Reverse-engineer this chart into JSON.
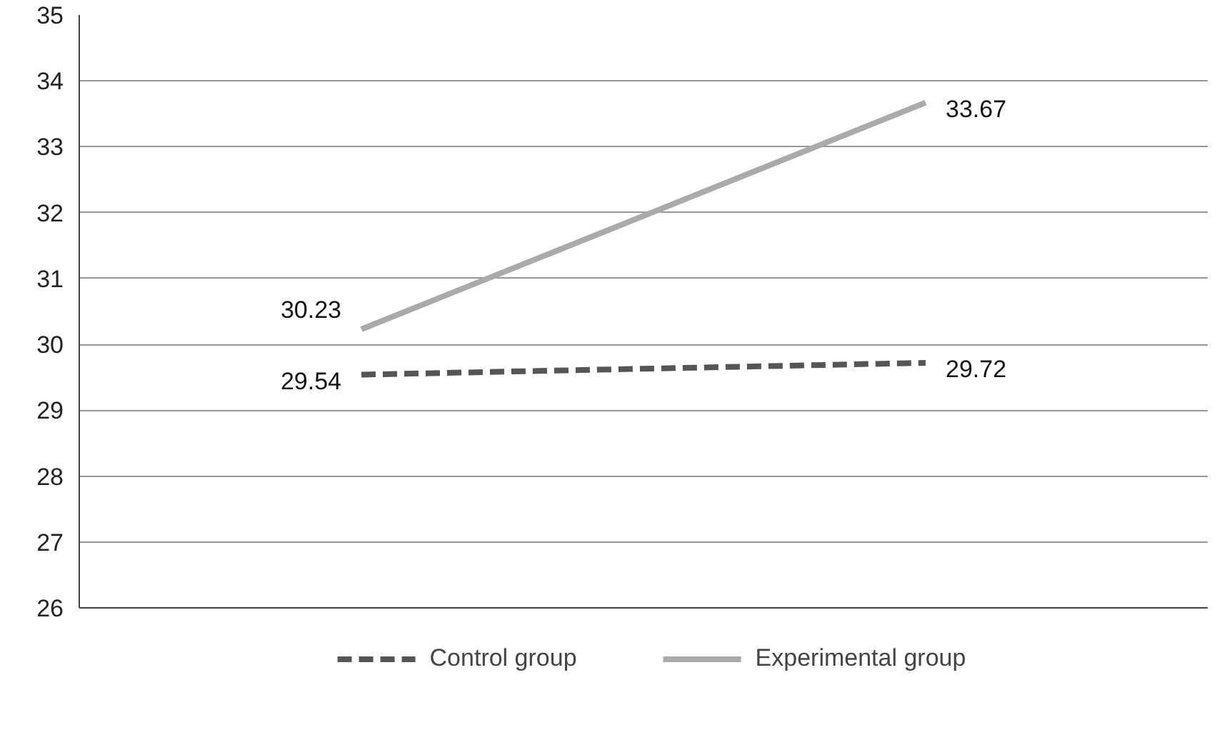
{
  "chart_data": {
    "type": "line",
    "categories": [
      null,
      null
    ],
    "series": [
      {
        "name": "Control group",
        "color": "#555555",
        "values": [
          29.54,
          29.72
        ],
        "line_style": "dashed"
      },
      {
        "name": "Experimental group",
        "color": "#aaaaaa",
        "values": [
          30.23,
          33.67
        ],
        "line_style": "solid"
      }
    ],
    "ylim": [
      26,
      35
    ],
    "yticks": [
      26,
      27,
      28,
      29,
      30,
      31,
      32,
      33,
      34,
      35
    ],
    "grid": "y",
    "legend": "bottom",
    "data_labels": true,
    "tick_labels": "y",
    "marker": "none"
  }
}
